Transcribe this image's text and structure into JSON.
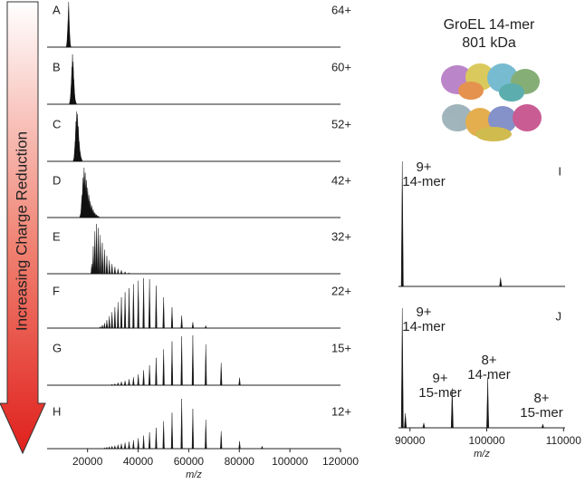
{
  "figure": {
    "arrow_label": "Increasing Charge Reduction",
    "inset_title": [
      "GroEL 14-mer",
      "801 kDa"
    ]
  },
  "chart_data": [
    {
      "type": "spectrum",
      "label": "A",
      "annotation": "64+",
      "xlim": [
        4000,
        120000
      ],
      "ylim": [
        0,
        100
      ],
      "x": [
        12136,
        12323,
        12516,
        12714,
        12919
      ],
      "values": [
        20,
        60,
        100,
        45,
        10
      ]
    },
    {
      "type": "spectrum",
      "label": "B",
      "annotation": "60+",
      "xlim": [
        4000,
        120000
      ],
      "ylim": [
        0,
        100
      ],
      "x": [
        13350,
        13576,
        13810,
        14053,
        14304,
        14564,
        14833,
        15113
      ],
      "values": [
        15,
        40,
        75,
        100,
        85,
        50,
        20,
        8
      ]
    },
    {
      "type": "spectrum",
      "label": "C",
      "annotation": "52+",
      "xlim": [
        4000,
        120000
      ],
      "ylim": [
        0,
        100
      ],
      "x": [
        14833,
        15113,
        15404,
        15706,
        16020,
        16347,
        16688,
        17043,
        17413
      ],
      "values": [
        10,
        40,
        80,
        100,
        95,
        70,
        40,
        20,
        8
      ]
    },
    {
      "type": "spectrum",
      "label": "D",
      "annotation": "42+",
      "xlim": [
        4000,
        120000
      ],
      "ylim": [
        0,
        100
      ],
      "x": [
        17413,
        17800,
        18205,
        18628,
        19071,
        19537,
        20025,
        20538,
        21079,
        21649,
        22250,
        22886,
        23559,
        24273
      ],
      "values": [
        10,
        45,
        80,
        100,
        90,
        75,
        60,
        45,
        33,
        24,
        16,
        10,
        6,
        3
      ]
    },
    {
      "type": "spectrum",
      "label": "E",
      "annotation": "32+",
      "xlim": [
        4000,
        120000
      ],
      "ylim": [
        0,
        100
      ],
      "x": [
        21649,
        22250,
        22886,
        23559,
        24273,
        25031,
        25839,
        26700,
        27621,
        28607,
        29667,
        30808,
        32040,
        33375,
        34826,
        36409
      ],
      "values": [
        20,
        55,
        85,
        100,
        92,
        78,
        62,
        48,
        36,
        27,
        20,
        14,
        10,
        7,
        4,
        2
      ]
    },
    {
      "type": "spectrum",
      "label": "F",
      "annotation": "22+",
      "xlim": [
        4000,
        120000
      ],
      "ylim": [
        0,
        100
      ],
      "x": [
        25031,
        25839,
        26700,
        27621,
        28607,
        29667,
        30808,
        32040,
        33375,
        34826,
        36409,
        38143,
        40050,
        42158,
        44500,
        47118,
        50063,
        53400,
        57214,
        61615,
        66750
      ],
      "values": [
        3,
        6,
        10,
        16,
        24,
        32,
        42,
        52,
        62,
        72,
        80,
        88,
        95,
        100,
        98,
        85,
        62,
        42,
        25,
        12,
        5
      ]
    },
    {
      "type": "spectrum",
      "label": "G",
      "annotation": "15+",
      "xlim": [
        4000,
        120000
      ],
      "ylim": [
        0,
        100
      ],
      "x": [
        29667,
        30808,
        32040,
        33375,
        34826,
        36409,
        38143,
        40050,
        42158,
        44500,
        47118,
        50063,
        53400,
        57214,
        61615,
        66750,
        72818,
        80100
      ],
      "values": [
        2,
        3,
        5,
        7,
        9,
        12,
        16,
        22,
        30,
        40,
        55,
        72,
        88,
        98,
        100,
        82,
        45,
        15
      ]
    },
    {
      "type": "spectrum",
      "label": "H",
      "annotation": "12+",
      "xlim": [
        4000,
        120000
      ],
      "ylim": [
        0,
        100
      ],
      "x": [
        26700,
        27621,
        28607,
        29667,
        30808,
        32040,
        33375,
        34826,
        36409,
        38143,
        40050,
        42158,
        44500,
        47118,
        50063,
        53400,
        57214,
        61615,
        66750,
        72818,
        80100,
        89000
      ],
      "values": [
        2,
        3,
        4,
        5,
        6,
        8,
        10,
        12,
        14,
        17,
        21,
        26,
        33,
        42,
        55,
        72,
        100,
        80,
        58,
        35,
        15,
        5
      ],
      "xticks": [
        20000,
        40000,
        60000,
        80000,
        100000,
        120000
      ],
      "xlabel": "m/z"
    },
    {
      "type": "spectrum",
      "label": "I",
      "xlim": [
        88500,
        110200
      ],
      "ylim": [
        0,
        100
      ],
      "x": [
        89000,
        101800
      ],
      "values": [
        100,
        7
      ],
      "annotations": [
        {
          "lines": [
            "9+",
            "14-mer"
          ]
        }
      ]
    },
    {
      "type": "spectrum",
      "label": "J",
      "xlim": [
        88500,
        110200
      ],
      "ylim": [
        0,
        100
      ],
      "x": [
        89000,
        89400,
        91800,
        95500,
        100125,
        107300
      ],
      "values": [
        100,
        12,
        4,
        33,
        42,
        3
      ],
      "annotations": [
        {
          "lines": [
            "9+",
            "14-mer"
          ]
        },
        {
          "lines": [
            "9+",
            "15-mer"
          ]
        },
        {
          "lines": [
            "8+",
            "14-mer"
          ]
        },
        {
          "lines": [
            "8+",
            "15-mer"
          ]
        }
      ],
      "xticks": [
        90000,
        100000,
        110000
      ],
      "xlabel": "m/z"
    }
  ]
}
